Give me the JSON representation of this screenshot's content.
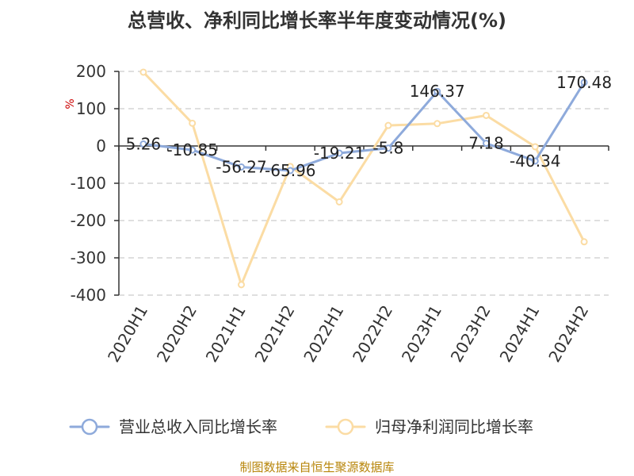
{
  "title": "总营收、净利同比增长率半年度变动情况(%)",
  "y_unit": "%",
  "source": "制图数据来自恒生聚源数据库",
  "colors": {
    "revenue": "#8eaadb",
    "profit": "#fbdca4",
    "grid": "#cccccc",
    "axis": "#333333",
    "source": "#b8860b"
  },
  "chart_data": {
    "type": "line",
    "title": "总营收、净利同比增长率半年度变动情况(%)",
    "xlabel": "",
    "ylabel": "%",
    "ylim": [
      -400,
      200
    ],
    "yticks": [
      200,
      100,
      0,
      -100,
      -200,
      -300,
      -400
    ],
    "grid": true,
    "legend_position": "bottom",
    "categories": [
      "2020H1",
      "2020H2",
      "2021H1",
      "2021H2",
      "2022H1",
      "2022H2",
      "2023H1",
      "2023H2",
      "2024H1",
      "2024H2"
    ],
    "series": [
      {
        "name": "营业总收入同比增长率",
        "color": "#8eaadb",
        "values": [
          5.26,
          -10.85,
          -56.27,
          -65.96,
          -19.21,
          -5.8,
          146.37,
          7.18,
          -40.34,
          170.48
        ],
        "labels": [
          "5.26",
          "-10.85",
          "-56.27",
          "-65.96",
          "-19.21",
          "-5.8",
          "146.37",
          "7.18",
          "-40.34",
          "170.48"
        ]
      },
      {
        "name": "归母净利润同比增长率",
        "color": "#fbdca4",
        "values": [
          198,
          61,
          -372,
          -55,
          -150,
          55,
          60,
          82,
          -2,
          -257
        ]
      }
    ]
  }
}
